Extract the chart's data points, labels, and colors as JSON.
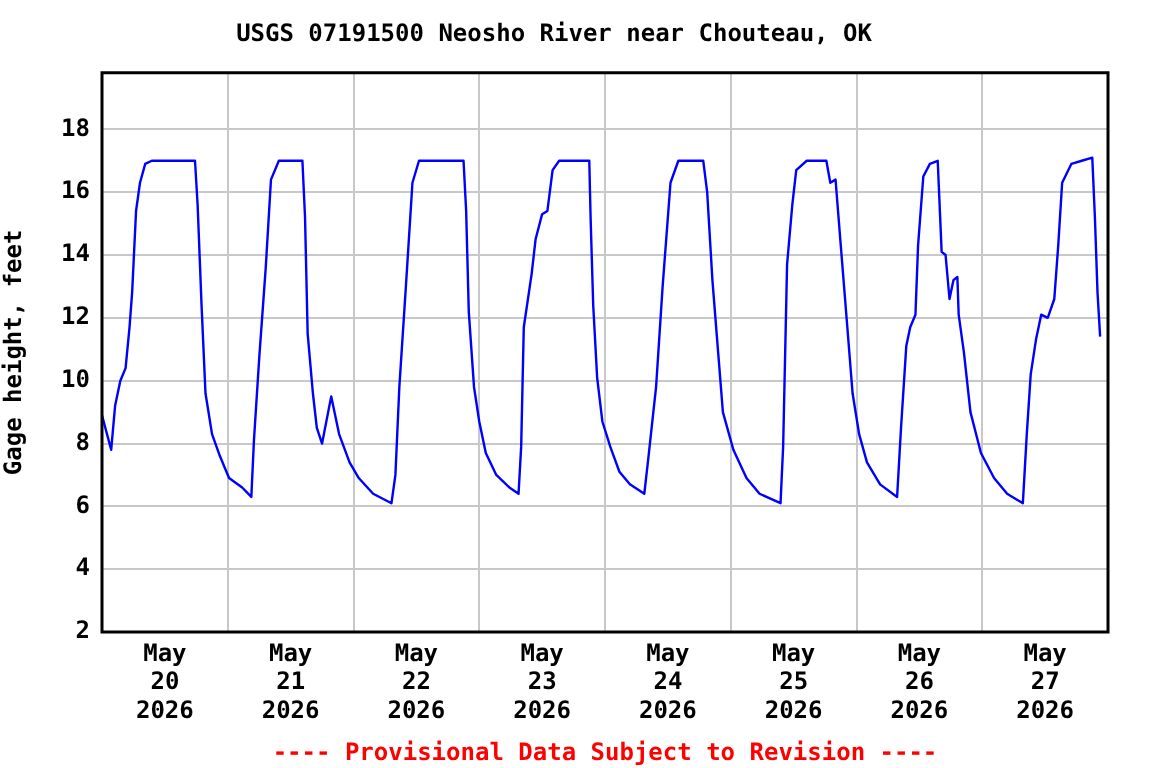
{
  "chart_data": {
    "type": "line",
    "title": "USGS 07191500 Neosho River near Chouteau, OK",
    "ylabel": "Gage height, feet",
    "annotations": [
      "---- Provisional Data Subject to Revision ----"
    ],
    "x": [
      "2026-05-20T00:00",
      "2026-05-20T01:45",
      "2026-05-20T02:30",
      "2026-05-20T03:30",
      "2026-05-20T04:30",
      "2026-05-20T05:15",
      "2026-05-20T05:45",
      "2026-05-20T06:30",
      "2026-05-20T07:15",
      "2026-05-20T08:15",
      "2026-05-20T09:30",
      "2026-05-20T17:45",
      "2026-05-20T18:15",
      "2026-05-20T19:00",
      "2026-05-20T19:45",
      "2026-05-20T21:00",
      "2026-05-20T22:30",
      "2026-05-21T00:15",
      "2026-05-21T02:45",
      "2026-05-21T04:30",
      "2026-05-21T05:00",
      "2026-05-21T06:00",
      "2026-05-21T07:15",
      "2026-05-21T08:15",
      "2026-05-21T09:45",
      "2026-05-21T14:15",
      "2026-05-21T14:45",
      "2026-05-21T15:15",
      "2026-05-21T16:15",
      "2026-05-21T17:00",
      "2026-05-21T18:00",
      "2026-05-21T19:45",
      "2026-05-21T21:15",
      "2026-05-21T23:15",
      "2026-05-22T01:00",
      "2026-05-22T03:45",
      "2026-05-22T07:15",
      "2026-05-22T08:00",
      "2026-05-22T08:45",
      "2026-05-22T10:00",
      "2026-05-22T11:15",
      "2026-05-22T12:30",
      "2026-05-22T21:00",
      "2026-05-22T21:30",
      "2026-05-22T22:00",
      "2026-05-22T23:00",
      "2026-05-23T00:00",
      "2026-05-23T01:15",
      "2026-05-23T03:15",
      "2026-05-23T05:45",
      "2026-05-23T07:30",
      "2026-05-23T08:00",
      "2026-05-23T08:30",
      "2026-05-23T10:00",
      "2026-05-23T10:45",
      "2026-05-23T12:00",
      "2026-05-23T13:00",
      "2026-05-23T14:00",
      "2026-05-23T15:15",
      "2026-05-23T21:00",
      "2026-05-23T21:15",
      "2026-05-23T21:45",
      "2026-05-23T22:30",
      "2026-05-23T23:30",
      "2026-05-24T01:00",
      "2026-05-24T02:45",
      "2026-05-24T04:45",
      "2026-05-24T07:30",
      "2026-05-24T08:15",
      "2026-05-24T09:45",
      "2026-05-24T11:00",
      "2026-05-24T12:30",
      "2026-05-24T14:00",
      "2026-05-24T18:45",
      "2026-05-24T19:30",
      "2026-05-24T20:30",
      "2026-05-24T21:30",
      "2026-05-24T22:30",
      "2026-05-25T00:30",
      "2026-05-25T03:00",
      "2026-05-25T05:30",
      "2026-05-25T09:30",
      "2026-05-25T10:00",
      "2026-05-25T10:45",
      "2026-05-25T11:45",
      "2026-05-25T12:30",
      "2026-05-25T14:30",
      "2026-05-25T18:15",
      "2026-05-25T19:00",
      "2026-05-25T20:00",
      "2026-05-25T21:00",
      "2026-05-25T22:15",
      "2026-05-25T23:15",
      "2026-05-26T00:30",
      "2026-05-26T02:00",
      "2026-05-26T04:30",
      "2026-05-26T07:45",
      "2026-05-26T08:30",
      "2026-05-26T09:30",
      "2026-05-26T10:15",
      "2026-05-26T11:15",
      "2026-05-26T11:45",
      "2026-05-26T12:45",
      "2026-05-26T14:00",
      "2026-05-26T15:30",
      "2026-05-26T16:15",
      "2026-05-26T17:00",
      "2026-05-26T17:45",
      "2026-05-26T18:30",
      "2026-05-26T19:15",
      "2026-05-26T19:30",
      "2026-05-26T20:30",
      "2026-05-26T21:45",
      "2026-05-26T23:45",
      "2026-05-27T02:15",
      "2026-05-27T04:45",
      "2026-05-27T07:45",
      "2026-05-27T08:30",
      "2026-05-27T09:15",
      "2026-05-27T10:15",
      "2026-05-27T11:15",
      "2026-05-27T12:30",
      "2026-05-27T13:45",
      "2026-05-27T14:30",
      "2026-05-27T15:15",
      "2026-05-27T17:00",
      "2026-05-27T19:00",
      "2026-05-27T21:00",
      "2026-05-27T21:30",
      "2026-05-27T22:00",
      "2026-05-27T22:30"
    ],
    "series": [
      {
        "color": "#0000ff",
        "values": [
          8.9,
          7.8,
          9.2,
          10.0,
          10.4,
          11.7,
          12.8,
          15.4,
          16.3,
          16.9,
          17.0,
          17.0,
          15.6,
          12.4,
          9.6,
          8.3,
          7.6,
          6.9,
          6.6,
          6.3,
          8.1,
          10.7,
          13.6,
          16.4,
          17.0,
          17.0,
          15.2,
          11.5,
          9.6,
          8.5,
          8.0,
          9.5,
          8.3,
          7.4,
          6.9,
          6.4,
          6.1,
          7.0,
          9.8,
          13.0,
          16.3,
          17.0,
          17.0,
          15.4,
          12.2,
          9.8,
          8.7,
          7.7,
          7.0,
          6.6,
          6.4,
          7.9,
          11.7,
          13.4,
          14.5,
          15.3,
          15.4,
          16.7,
          17.0,
          17.0,
          15.2,
          12.4,
          10.1,
          8.7,
          7.9,
          7.1,
          6.7,
          6.4,
          7.5,
          9.8,
          13.0,
          16.3,
          17.0,
          17.0,
          16.0,
          13.2,
          11.1,
          9.0,
          7.8,
          6.9,
          6.4,
          6.1,
          7.9,
          13.7,
          15.6,
          16.7,
          17.0,
          17.0,
          16.3,
          16.4,
          14.3,
          11.7,
          9.6,
          8.3,
          7.4,
          6.7,
          6.3,
          8.5,
          11.1,
          11.7,
          12.1,
          14.3,
          16.5,
          16.9,
          17.0,
          14.1,
          14.0,
          12.6,
          13.2,
          13.3,
          12.1,
          10.9,
          9.0,
          7.7,
          6.9,
          6.4,
          6.1,
          8.3,
          10.2,
          11.3,
          12.1,
          12.0,
          12.6,
          14.3,
          16.3,
          16.9,
          17.0,
          17.1,
          15.2,
          12.8,
          11.4
        ]
      }
    ],
    "xlim": [
      "2026-05-20T00:00",
      "2026-05-28T00:00"
    ],
    "xticks": [
      {
        "value": "2026-05-20T12:00",
        "label": "May\n20\n2026"
      },
      {
        "value": "2026-05-21T00:00",
        "label": null
      },
      {
        "value": "2026-05-21T12:00",
        "label": "May\n21\n2026"
      },
      {
        "value": "2026-05-22T00:00",
        "label": null
      },
      {
        "value": "2026-05-22T12:00",
        "label": "May\n22\n2026"
      },
      {
        "value": "2026-05-23T00:00",
        "label": null
      },
      {
        "value": "2026-05-23T12:00",
        "label": "May\n23\n2026"
      },
      {
        "value": "2026-05-24T00:00",
        "label": null
      },
      {
        "value": "2026-05-24T12:00",
        "label": "May\n24\n2026"
      },
      {
        "value": "2026-05-25T00:00",
        "label": null
      },
      {
        "value": "2026-05-25T12:00",
        "label": "May\n25\n2026"
      },
      {
        "value": "2026-05-26T00:00",
        "label": null
      },
      {
        "value": "2026-05-26T12:00",
        "label": "May\n26\n2026"
      },
      {
        "value": "2026-05-27T00:00",
        "label": null
      },
      {
        "value": "2026-05-27T12:00",
        "label": "May\n27\n2026"
      }
    ],
    "ylim": [
      2,
      19.8
    ],
    "yticks": [
      2,
      4,
      6,
      8,
      10,
      12,
      14,
      16,
      18
    ],
    "grid": true,
    "marker": "none",
    "line_style": "solid"
  }
}
